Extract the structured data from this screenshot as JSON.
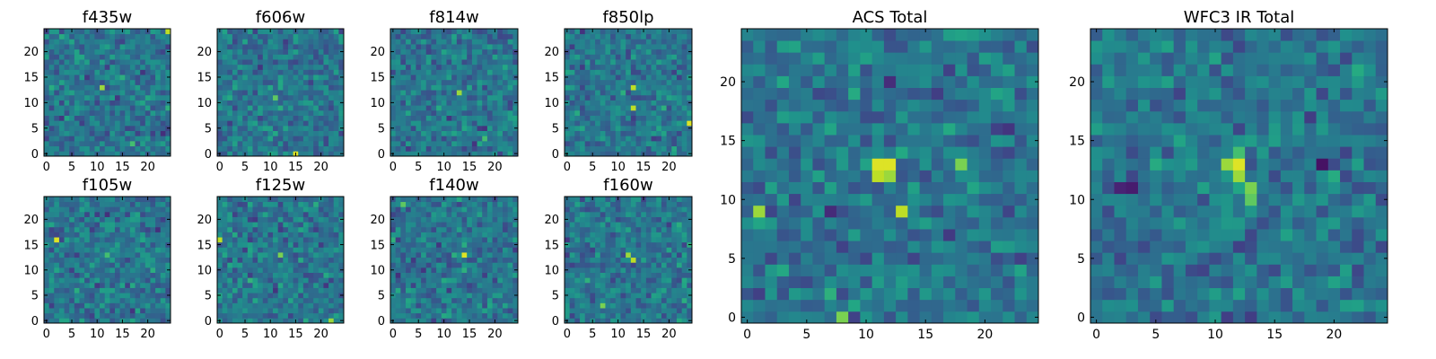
{
  "chart_data": [
    {
      "type": "heatmap",
      "title": "f435w",
      "xticks": [
        "0",
        "5",
        "10",
        "15",
        "20"
      ],
      "yticks": [
        "0",
        "5",
        "10",
        "15",
        "20"
      ],
      "xlim": [
        -0.5,
        24.5
      ],
      "ylim": [
        -0.5,
        24.5
      ],
      "grid": false,
      "colormap": "viridis",
      "hotspots": [
        [
          11,
          13,
          0.85
        ],
        [
          24,
          24,
          0.9
        ],
        [
          17,
          2,
          0.7
        ]
      ],
      "seed": 11
    },
    {
      "type": "heatmap",
      "title": "f606w",
      "xticks": [
        "0",
        "5",
        "10",
        "15",
        "20"
      ],
      "yticks": [
        "0",
        "5",
        "10",
        "15",
        "20"
      ],
      "xlim": [
        -0.5,
        24.5
      ],
      "ylim": [
        -0.5,
        24.5
      ],
      "grid": false,
      "colormap": "viridis",
      "hotspots": [
        [
          15,
          0,
          0.95
        ],
        [
          11,
          11,
          0.75
        ]
      ],
      "seed": 23
    },
    {
      "type": "heatmap",
      "title": "f814w",
      "xticks": [
        "0",
        "5",
        "10",
        "15",
        "20"
      ],
      "yticks": [
        "0",
        "5",
        "10",
        "15",
        "20"
      ],
      "xlim": [
        -0.5,
        24.5
      ],
      "ylim": [
        -0.5,
        24.5
      ],
      "grid": false,
      "colormap": "viridis",
      "hotspots": [
        [
          13,
          12,
          0.85
        ],
        [
          18,
          3,
          0.7
        ]
      ],
      "seed": 37
    },
    {
      "type": "heatmap",
      "title": "f850lp",
      "xticks": [
        "0",
        "5",
        "10",
        "15",
        "20"
      ],
      "yticks": [
        "0",
        "5",
        "10",
        "15",
        "20"
      ],
      "xlim": [
        -0.5,
        24.5
      ],
      "ylim": [
        -0.5,
        24.5
      ],
      "grid": false,
      "colormap": "viridis",
      "hotspots": [
        [
          13,
          13,
          0.9
        ],
        [
          13,
          9,
          0.9
        ],
        [
          24,
          6,
          0.95
        ]
      ],
      "seed": 41
    },
    {
      "type": "heatmap",
      "title": "f105w",
      "xticks": [
        "0",
        "5",
        "10",
        "15",
        "20"
      ],
      "yticks": [
        "0",
        "5",
        "10",
        "15",
        "20"
      ],
      "xlim": [
        -0.5,
        24.5
      ],
      "ylim": [
        -0.5,
        24.5
      ],
      "grid": false,
      "colormap": "viridis",
      "hotspots": [
        [
          2,
          16,
          0.95
        ],
        [
          12,
          13,
          0.7
        ]
      ],
      "seed": 53
    },
    {
      "type": "heatmap",
      "title": "f125w",
      "xticks": [
        "0",
        "5",
        "10",
        "15",
        "20"
      ],
      "yticks": [
        "0",
        "5",
        "10",
        "15",
        "20"
      ],
      "xlim": [
        -0.5,
        24.5
      ],
      "ylim": [
        -0.5,
        24.5
      ],
      "grid": false,
      "colormap": "viridis",
      "hotspots": [
        [
          0,
          16,
          0.9
        ],
        [
          12,
          13,
          0.8
        ],
        [
          22,
          0,
          0.85
        ]
      ],
      "seed": 61
    },
    {
      "type": "heatmap",
      "title": "f140w",
      "xticks": [
        "0",
        "5",
        "10",
        "15",
        "20"
      ],
      "yticks": [
        "0",
        "5",
        "10",
        "15",
        "20"
      ],
      "xlim": [
        -0.5,
        24.5
      ],
      "ylim": [
        -0.5,
        24.5
      ],
      "grid": false,
      "colormap": "viridis",
      "hotspots": [
        [
          14,
          13,
          0.95
        ],
        [
          2,
          23,
          0.75
        ]
      ],
      "seed": 71
    },
    {
      "type": "heatmap",
      "title": "f160w",
      "xticks": [
        "0",
        "5",
        "10",
        "15",
        "20"
      ],
      "yticks": [
        "0",
        "5",
        "10",
        "15",
        "20"
      ],
      "xlim": [
        -0.5,
        24.5
      ],
      "ylim": [
        -0.5,
        24.5
      ],
      "grid": false,
      "colormap": "viridis",
      "hotspots": [
        [
          13,
          12,
          0.9
        ],
        [
          12,
          13,
          0.85
        ],
        [
          7,
          3,
          0.8
        ]
      ],
      "seed": 83
    },
    {
      "type": "heatmap",
      "title": "ACS Total",
      "xticks": [
        "0",
        "5",
        "10",
        "15",
        "20"
      ],
      "yticks": [
        "0",
        "5",
        "10",
        "15",
        "20"
      ],
      "xlim": [
        -0.5,
        24.5
      ],
      "ylim": [
        -0.5,
        24.5
      ],
      "grid": false,
      "colormap": "viridis",
      "hotspots": [
        [
          11,
          13,
          0.95
        ],
        [
          12,
          13,
          0.95
        ],
        [
          11,
          12,
          0.9
        ],
        [
          12,
          12,
          0.85
        ],
        [
          13,
          9,
          0.9
        ],
        [
          1,
          9,
          0.85
        ],
        [
          18,
          13,
          0.8
        ],
        [
          8,
          0,
          0.8
        ]
      ],
      "seed": 97
    },
    {
      "type": "heatmap",
      "title": "WFC3 IR Total",
      "xticks": [
        "0",
        "5",
        "10",
        "15",
        "20"
      ],
      "yticks": [
        "0",
        "5",
        "10",
        "15",
        "20"
      ],
      "xlim": [
        -0.5,
        24.5
      ],
      "ylim": [
        -0.5,
        24.5
      ],
      "grid": false,
      "colormap": "viridis",
      "hotspots": [
        [
          12,
          13,
          0.95
        ],
        [
          11,
          13,
          0.85
        ],
        [
          12,
          12,
          0.85
        ],
        [
          13,
          11,
          0.8
        ],
        [
          13,
          10,
          0.75
        ],
        [
          12,
          14,
          0.7
        ],
        [
          19,
          13,
          0.05
        ],
        [
          3,
          11,
          0.08
        ],
        [
          2,
          11,
          0.1
        ]
      ],
      "seed": 101
    }
  ]
}
